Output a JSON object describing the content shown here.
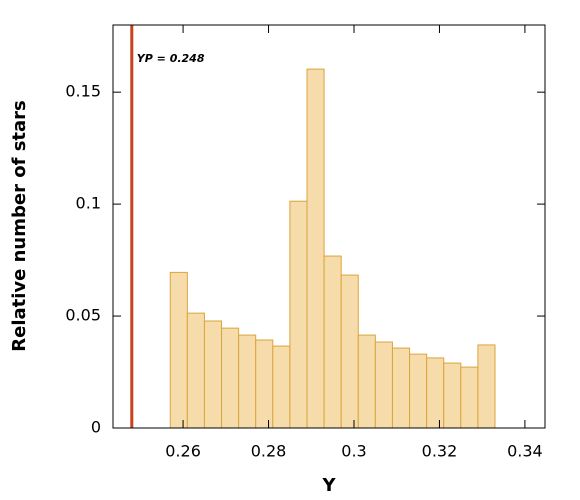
{
  "chart_data": {
    "type": "histogram",
    "xlabel": "Y",
    "ylabel": "Relative number of stars",
    "bins": [
      0.257,
      0.261,
      0.265,
      0.269,
      0.273,
      0.277,
      0.281,
      0.285,
      0.289,
      0.293,
      0.297,
      0.301,
      0.305,
      0.309,
      0.313,
      0.317,
      0.321,
      0.325,
      0.329,
      0.333
    ],
    "values": [
      0.0695,
      0.0513,
      0.0478,
      0.0446,
      0.0415,
      0.0393,
      0.0366,
      0.1013,
      0.1603,
      0.0768,
      0.0683,
      0.0415,
      0.0384,
      0.0357,
      0.033,
      0.0313,
      0.029,
      0.0272,
      0.0371
    ],
    "color": "#f5dcaa",
    "edge_color": "#dca43c",
    "xlim": [
      0.2436,
      0.3447
    ],
    "xticks": [
      0.26,
      0.28,
      0.3,
      0.32,
      0.34
    ],
    "ylim": [
      0,
      0.18
    ],
    "yticks": [
      0,
      0.05,
      0.1,
      0.15
    ],
    "annotations": [
      {
        "text": "YP = 0.248",
        "x": 0.248,
        "color": "#c8421e"
      }
    ]
  }
}
